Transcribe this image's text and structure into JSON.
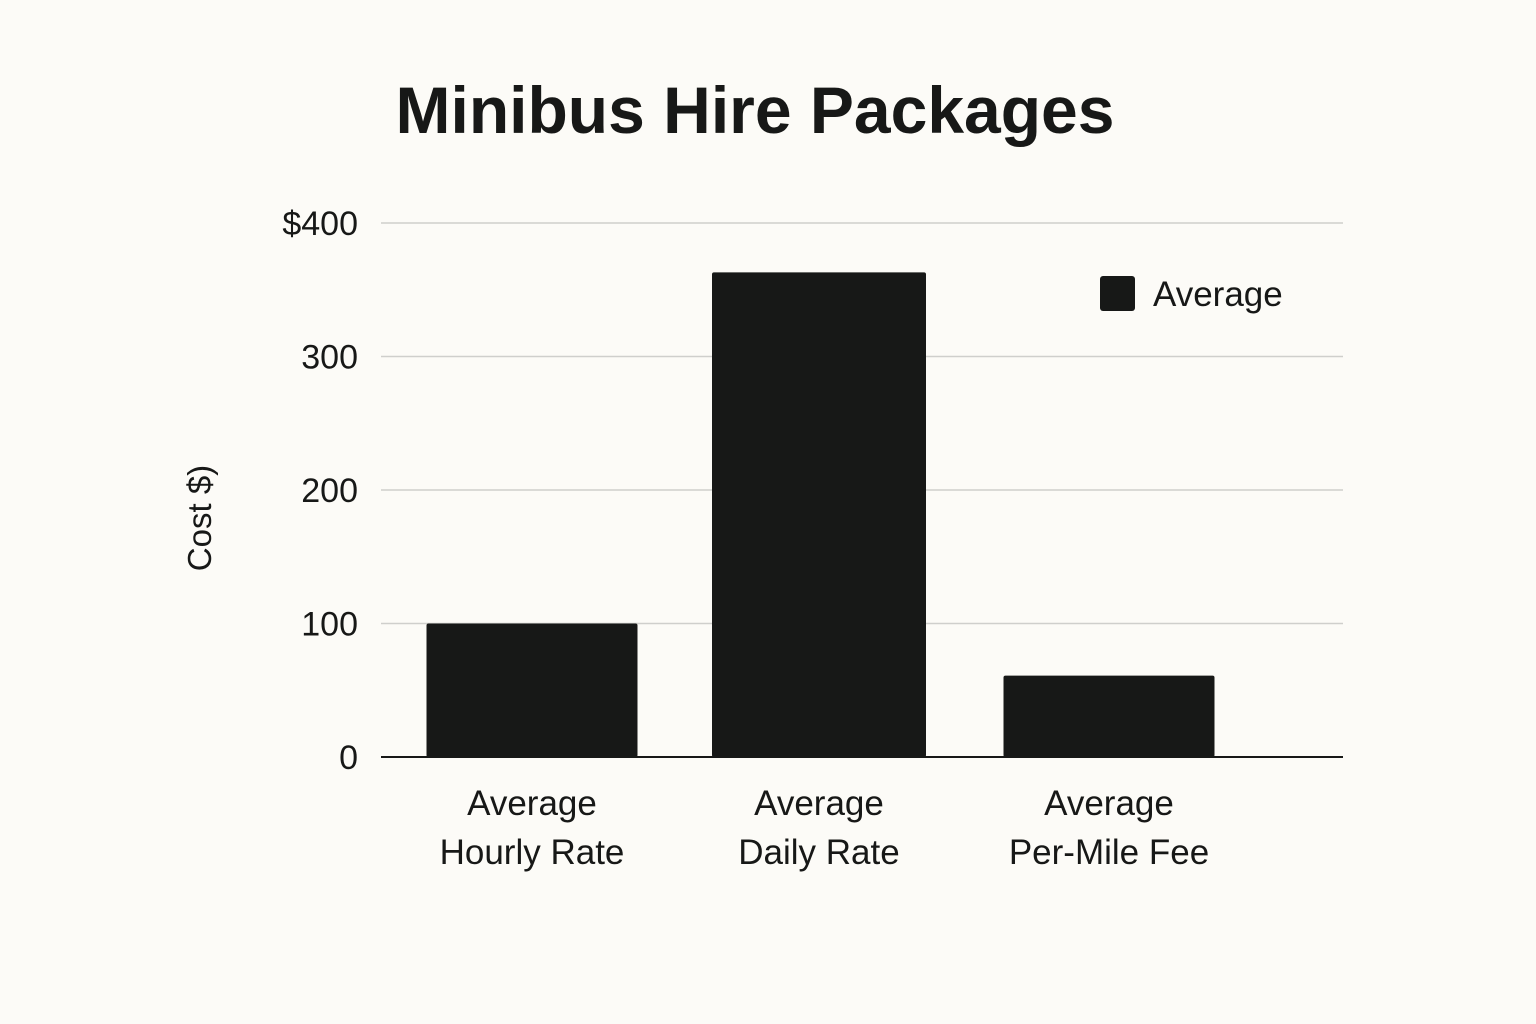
{
  "chart_data": {
    "type": "bar",
    "title": "Minibus Hire Packages",
    "ylabel": "Cost $)",
    "xlabel": "",
    "categories": [
      [
        "Average",
        "Hourly Rate"
      ],
      [
        "Average",
        "Daily Rate"
      ],
      [
        "Average",
        "Per-Mile Fee"
      ]
    ],
    "series": [
      {
        "name": "Average",
        "color": "#171817",
        "values": [
          100,
          363,
          61
        ]
      }
    ],
    "ylim": [
      0,
      400
    ],
    "yticks": [
      0,
      100,
      200,
      300,
      400
    ],
    "ytick_labels": [
      "0",
      "100",
      "200",
      "300",
      "$400"
    ],
    "grid": true,
    "legend": "top-right"
  },
  "colors": {
    "background": "#fcfbf7",
    "bar": "#171817",
    "grid": "#cfcfcc",
    "text": "#171817"
  }
}
